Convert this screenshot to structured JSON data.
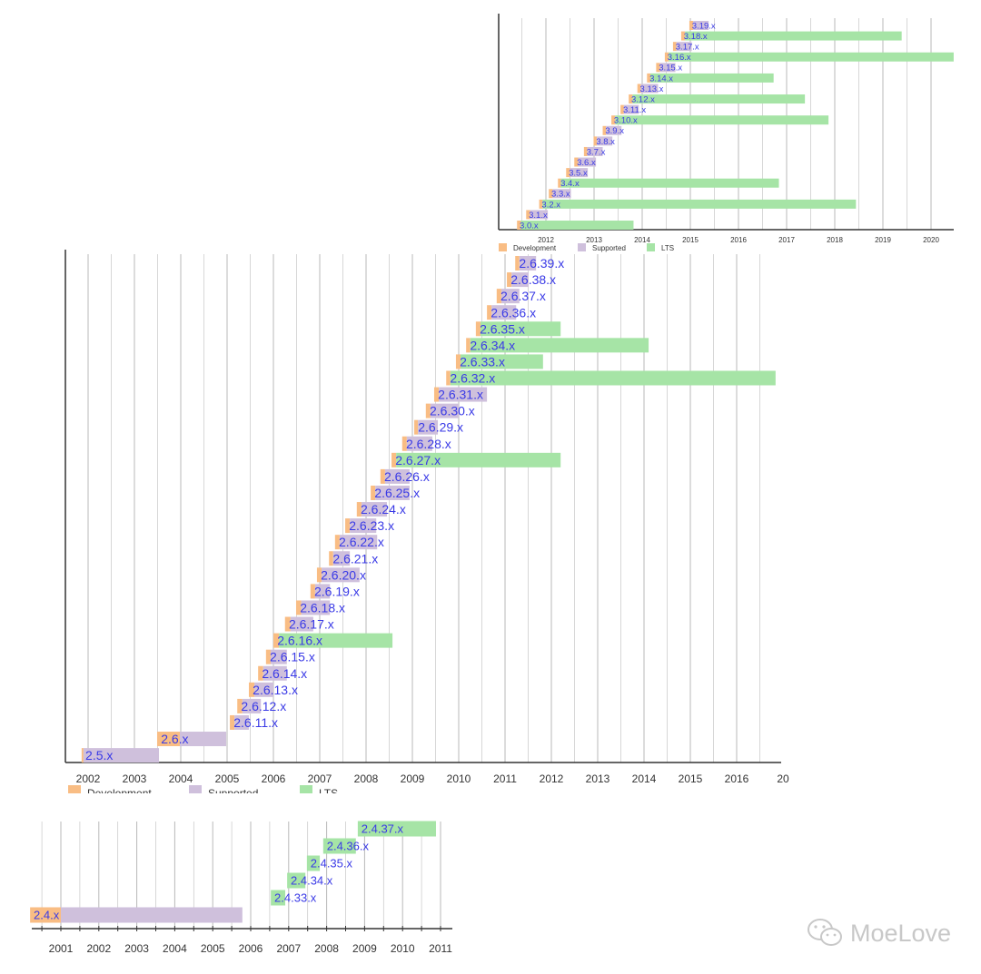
{
  "colors": {
    "development": "#f9bd84",
    "supported": "#cfc0dc",
    "lts": "#a6e4a6",
    "label": "#3a3ae6",
    "grid": "#b8b8b8"
  },
  "legend": [
    {
      "key": "development",
      "label": "Development"
    },
    {
      "key": "supported",
      "label": "Supported"
    },
    {
      "key": "lts",
      "label": "LTS"
    }
  ],
  "watermark": {
    "text": "MoeLove",
    "icon": "wechat-icon"
  },
  "chart_data": [
    {
      "type": "bar",
      "subtype": "gantt-timeline",
      "xlim": [
        2011,
        2020.5
      ],
      "ticks": [
        "2012",
        "2013",
        "2014",
        "2015",
        "2016",
        "2017",
        "2018",
        "2019",
        "2020"
      ],
      "grid": true,
      "legend_position": "bottom",
      "bars": [
        {
          "label": "3.19.x",
          "start": 2014.98,
          "release": 2015.06,
          "end": 2015.38,
          "status": "supported"
        },
        {
          "label": "3.18.x",
          "start": 2014.81,
          "release": 2014.89,
          "end": 2019.39,
          "status": "lts"
        },
        {
          "label": "3.17.x",
          "start": 2014.64,
          "release": 2014.71,
          "end": 2015.03,
          "status": "supported"
        },
        {
          "label": "3.16.x",
          "start": 2014.47,
          "release": 2014.55,
          "end": 2020.47,
          "status": "lts"
        },
        {
          "label": "3.15.x",
          "start": 2014.29,
          "release": 2014.37,
          "end": 2014.69,
          "status": "supported"
        },
        {
          "label": "3.14.x",
          "start": 2014.1,
          "release": 2014.17,
          "end": 2016.73,
          "status": "lts"
        },
        {
          "label": "3.13.x",
          "start": 2013.9,
          "release": 2013.97,
          "end": 2014.33,
          "status": "supported"
        },
        {
          "label": "3.12.x",
          "start": 2013.72,
          "release": 2013.8,
          "end": 2017.38,
          "status": "lts"
        },
        {
          "label": "3.11.x",
          "start": 2013.55,
          "release": 2013.62,
          "end": 2013.93,
          "status": "supported"
        },
        {
          "label": "3.10.x",
          "start": 2013.36,
          "release": 2013.44,
          "end": 2017.87,
          "status": "lts"
        },
        {
          "label": "3.9.x",
          "start": 2013.18,
          "release": 2013.25,
          "end": 2013.57,
          "status": "supported"
        },
        {
          "label": "3.8.x",
          "start": 2012.99,
          "release": 2013.06,
          "end": 2013.38,
          "status": "supported"
        },
        {
          "label": "3.7.x",
          "start": 2012.79,
          "release": 2012.86,
          "end": 2013.18,
          "status": "supported"
        },
        {
          "label": "3.6.x",
          "start": 2012.59,
          "release": 2012.67,
          "end": 2013.04,
          "status": "supported"
        },
        {
          "label": "3.5.x",
          "start": 2012.42,
          "release": 2012.5,
          "end": 2012.87,
          "status": "supported"
        },
        {
          "label": "3.4.x",
          "start": 2012.25,
          "release": 2012.31,
          "end": 2016.84,
          "status": "lts"
        },
        {
          "label": "3.3.x",
          "start": 2012.06,
          "release": 2012.14,
          "end": 2012.52,
          "status": "supported"
        },
        {
          "label": "3.2.x",
          "start": 2011.86,
          "release": 2011.93,
          "end": 2018.44,
          "status": "lts"
        },
        {
          "label": "3.1.x",
          "start": 2011.59,
          "release": 2011.67,
          "end": 2012.04,
          "status": "supported"
        },
        {
          "label": "3.0.x",
          "start": 2011.4,
          "release": 2011.48,
          "end": 2013.82,
          "status": "lts"
        }
      ]
    },
    {
      "type": "bar",
      "subtype": "gantt-timeline",
      "xlim": [
        2001.5,
        2017.2
      ],
      "ticks": [
        "2002",
        "2003",
        "2004",
        "2005",
        "2006",
        "2007",
        "2008",
        "2009",
        "2010",
        "2011",
        "2012",
        "2013",
        "2014",
        "2015",
        "2016",
        "20"
      ],
      "grid": true,
      "legend_position": "bottom",
      "bars": [
        {
          "label": "2.6.39.x",
          "start": 2011.22,
          "release": 2011.31,
          "end": 2011.67,
          "status": "supported"
        },
        {
          "label": "2.6.38.x",
          "start": 2011.04,
          "release": 2011.14,
          "end": 2011.51,
          "status": "supported"
        },
        {
          "label": "2.6.37.x",
          "start": 2010.82,
          "release": 2010.92,
          "end": 2011.31,
          "status": "supported"
        },
        {
          "label": "2.6.36.x",
          "start": 2010.61,
          "release": 2010.71,
          "end": 2011.24,
          "status": "supported"
        },
        {
          "label": "2.6.35.x",
          "start": 2010.37,
          "release": 2010.47,
          "end": 2012.2,
          "status": "lts"
        },
        {
          "label": "2.6.34.x",
          "start": 2010.16,
          "release": 2010.25,
          "end": 2014.1,
          "status": "lts"
        },
        {
          "label": "2.6.33.x",
          "start": 2009.94,
          "release": 2010.04,
          "end": 2011.82,
          "status": "lts"
        },
        {
          "label": "2.6.32.x",
          "start": 2009.73,
          "release": 2009.82,
          "end": 2016.84,
          "status": "lts"
        },
        {
          "label": "2.6.31.x",
          "start": 2009.47,
          "release": 2009.57,
          "end": 2010.61,
          "status": "supported"
        },
        {
          "label": "2.6.30.x",
          "start": 2009.29,
          "release": 2009.39,
          "end": 2010.0,
          "status": "supported"
        },
        {
          "label": "2.6.29.x",
          "start": 2009.04,
          "release": 2009.12,
          "end": 2009.55,
          "status": "supported"
        },
        {
          "label": "2.6.28.x",
          "start": 2008.78,
          "release": 2008.88,
          "end": 2009.43,
          "status": "supported"
        },
        {
          "label": "2.6.27.x",
          "start": 2008.55,
          "release": 2008.65,
          "end": 2012.2,
          "status": "lts"
        },
        {
          "label": "2.6.26.x",
          "start": 2008.31,
          "release": 2008.41,
          "end": 2008.94,
          "status": "supported"
        },
        {
          "label": "2.6.25.x",
          "start": 2008.1,
          "release": 2008.2,
          "end": 2008.94,
          "status": "supported"
        },
        {
          "label": "2.6.24.x",
          "start": 2007.8,
          "release": 2007.9,
          "end": 2008.45,
          "status": "supported"
        },
        {
          "label": "2.6.23.x",
          "start": 2007.55,
          "release": 2007.65,
          "end": 2008.22,
          "status": "supported"
        },
        {
          "label": "2.6.22.x",
          "start": 2007.33,
          "release": 2007.43,
          "end": 2008.24,
          "status": "supported"
        },
        {
          "label": "2.6.21.x",
          "start": 2007.2,
          "release": 2007.29,
          "end": 2007.65,
          "status": "supported"
        },
        {
          "label": "2.6.20.x",
          "start": 2006.94,
          "release": 2007.04,
          "end": 2007.86,
          "status": "supported"
        },
        {
          "label": "2.6.19.x",
          "start": 2006.8,
          "release": 2006.9,
          "end": 2007.22,
          "status": "supported"
        },
        {
          "label": "2.6.18.x",
          "start": 2006.49,
          "release": 2006.6,
          "end": 2007.22,
          "status": "supported"
        },
        {
          "label": "2.6.17.x",
          "start": 2006.25,
          "release": 2006.37,
          "end": 2006.86,
          "status": "supported"
        },
        {
          "label": "2.6.16.x",
          "start": 2006.0,
          "release": 2006.12,
          "end": 2008.57,
          "status": "lts"
        },
        {
          "label": "2.6.15.x",
          "start": 2005.84,
          "release": 2005.94,
          "end": 2006.29,
          "status": "supported"
        },
        {
          "label": "2.6.14.x",
          "start": 2005.67,
          "release": 2005.78,
          "end": 2006.29,
          "status": "supported"
        },
        {
          "label": "2.6.13.x",
          "start": 2005.47,
          "release": 2005.59,
          "end": 2006.0,
          "status": "supported"
        },
        {
          "label": "2.6.12.x",
          "start": 2005.22,
          "release": 2005.33,
          "end": 2005.73,
          "status": "supported"
        },
        {
          "label": "2.6.11.x",
          "start": 2005.06,
          "release": 2005.16,
          "end": 2005.47,
          "status": "supported"
        },
        {
          "label": "2.6.x",
          "start": 2003.49,
          "release": 2003.98,
          "end": 2004.98,
          "status": "supported"
        },
        {
          "label": "2.5.x",
          "start": 2001.86,
          "release": 2001.9,
          "end": 2003.53,
          "status": "supported"
        }
      ]
    },
    {
      "type": "bar",
      "subtype": "gantt-timeline",
      "xlim": [
        2000.2,
        2011.4
      ],
      "ticks": [
        "2001",
        "2002",
        "2003",
        "2004",
        "2005",
        "2006",
        "2007",
        "2008",
        "2009",
        "2010",
        "2011"
      ],
      "grid": true,
      "bars": [
        {
          "label": "2.4.37.x",
          "start": 2008.82,
          "release": 2008.82,
          "end": 2010.88,
          "status": "lts"
        },
        {
          "label": "2.4.36.x",
          "start": 2007.91,
          "release": 2007.91,
          "end": 2008.77,
          "status": "lts"
        },
        {
          "label": "2.4.35.x",
          "start": 2007.48,
          "release": 2007.48,
          "end": 2007.82,
          "status": "lts"
        },
        {
          "label": "2.4.34.x",
          "start": 2006.96,
          "release": 2006.96,
          "end": 2007.44,
          "status": "lts"
        },
        {
          "label": "2.4.33.x",
          "start": 2006.53,
          "release": 2006.53,
          "end": 2006.91,
          "status": "lts"
        },
        {
          "label": "2.4.x",
          "start": 2000.19,
          "release": 2001.0,
          "end": 2005.78,
          "status": "supported"
        }
      ]
    }
  ]
}
